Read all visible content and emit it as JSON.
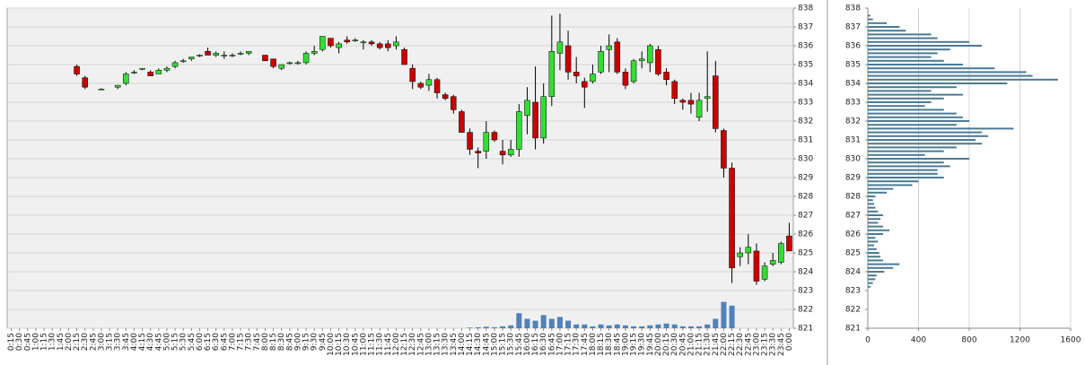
{
  "chart_data": [
    {
      "type": "candlestick",
      "categories": [
        "0:15",
        "0:30",
        "0:45",
        "1:00",
        "1:15",
        "1:30",
        "1:45",
        "2:00",
        "2:15",
        "2:30",
        "2:45",
        "3:00",
        "3:15",
        "3:30",
        "3:45",
        "4:00",
        "4:15",
        "4:30",
        "4:45",
        "5:00",
        "5:15",
        "5:30",
        "5:45",
        "6:00",
        "6:15",
        "6:30",
        "6:45",
        "7:00",
        "7:15",
        "7:30",
        "7:45",
        "8:00",
        "8:15",
        "8:30",
        "8:45",
        "9:00",
        "9:15",
        "9:30",
        "9:45",
        "10:00",
        "10:15",
        "10:30",
        "10:45",
        "11:00",
        "11:15",
        "11:30",
        "11:45",
        "12:00",
        "12:15",
        "12:30",
        "12:45",
        "13:00",
        "13:15",
        "13:30",
        "13:45",
        "14:00",
        "14:15",
        "14:30",
        "14:45",
        "15:00",
        "15:15",
        "15:30",
        "15:45",
        "16:00",
        "16:15",
        "16:30",
        "16:45",
        "17:00",
        "17:15",
        "17:30",
        "17:45",
        "18:00",
        "18:15",
        "18:30",
        "18:45",
        "19:00",
        "19:15",
        "19:30",
        "19:45",
        "20:00",
        "20:15",
        "20:30",
        "20:45",
        "21:00",
        "21:15",
        "21:30",
        "21:45",
        "22:00",
        "22:15",
        "22:30",
        "22:45",
        "23:00",
        "23:15",
        "23:30",
        "23:45",
        "0:00"
      ],
      "ohlc": [
        null,
        null,
        null,
        null,
        null,
        null,
        null,
        null,
        [
          834.9,
          835.0,
          834.4,
          834.5
        ],
        [
          834.3,
          834.4,
          833.7,
          833.8
        ],
        null,
        [
          833.7,
          833.75,
          833.65,
          833.7
        ],
        null,
        [
          833.8,
          833.9,
          833.7,
          833.9
        ],
        [
          834.0,
          834.6,
          833.9,
          834.5
        ],
        [
          834.6,
          834.7,
          834.5,
          834.6
        ],
        [
          834.8,
          834.8,
          834.7,
          834.8
        ],
        [
          834.6,
          834.7,
          834.4,
          834.4
        ],
        [
          834.5,
          834.8,
          834.5,
          834.7
        ],
        [
          834.7,
          834.9,
          834.6,
          834.8
        ],
        [
          834.9,
          835.2,
          834.8,
          835.1
        ],
        [
          835.2,
          835.3,
          835.1,
          835.2
        ],
        [
          835.3,
          835.4,
          835.2,
          835.4
        ],
        [
          835.5,
          835.55,
          835.4,
          835.5
        ],
        [
          835.7,
          835.9,
          835.5,
          835.5
        ],
        [
          835.5,
          835.7,
          835.4,
          835.6
        ],
        [
          835.5,
          835.7,
          835.3,
          835.5
        ],
        [
          835.5,
          835.6,
          835.4,
          835.5
        ],
        [
          835.6,
          835.7,
          835.5,
          835.6
        ],
        [
          835.6,
          835.7,
          835.5,
          835.7
        ],
        null,
        [
          835.5,
          835.5,
          835.2,
          835.2
        ],
        [
          835.3,
          835.3,
          834.8,
          834.9
        ],
        [
          834.8,
          835.0,
          834.7,
          835.0
        ],
        [
          835.1,
          835.15,
          835.0,
          835.1
        ],
        [
          835.1,
          835.2,
          835.0,
          835.1
        ],
        [
          835.1,
          835.7,
          835.0,
          835.6
        ],
        [
          835.6,
          836.0,
          835.5,
          835.7
        ],
        [
          835.8,
          836.5,
          835.7,
          836.5
        ],
        [
          836.4,
          836.4,
          835.9,
          836.0
        ],
        [
          835.9,
          836.2,
          835.6,
          836.1
        ],
        [
          836.3,
          836.5,
          836.1,
          836.2
        ],
        [
          836.3,
          836.4,
          836.2,
          836.3
        ],
        [
          836.2,
          836.3,
          835.8,
          836.2
        ],
        [
          836.2,
          836.3,
          836.0,
          836.1
        ],
        [
          836.1,
          836.2,
          835.8,
          835.9
        ],
        [
          836.1,
          836.3,
          835.7,
          835.9
        ],
        [
          836.0,
          836.5,
          835.8,
          836.2
        ],
        [
          835.8,
          835.9,
          835.0,
          835.0
        ],
        [
          834.8,
          835.0,
          833.7,
          834.1
        ],
        [
          834.0,
          834.1,
          833.7,
          833.8
        ],
        [
          833.9,
          834.5,
          833.6,
          834.2
        ],
        [
          834.2,
          834.3,
          833.2,
          833.5
        ],
        [
          833.4,
          833.5,
          833.1,
          833.2
        ],
        [
          833.3,
          833.4,
          832.4,
          832.6
        ],
        [
          832.5,
          832.6,
          831.4,
          831.4
        ],
        [
          831.4,
          831.6,
          830.2,
          830.5
        ],
        [
          830.4,
          830.6,
          829.5,
          830.3
        ],
        [
          830.4,
          832.0,
          830.0,
          831.4
        ],
        [
          831.4,
          831.5,
          830.9,
          831.0
        ],
        [
          830.4,
          831.0,
          829.7,
          830.2
        ],
        [
          830.2,
          831.0,
          830.1,
          830.5
        ],
        [
          830.5,
          832.9,
          830.1,
          832.5
        ],
        [
          832.3,
          833.8,
          831.3,
          833.1
        ],
        [
          833.0,
          834.9,
          830.5,
          831.1
        ],
        [
          831.1,
          834.0,
          830.8,
          833.3
        ],
        [
          833.3,
          837.6,
          832.8,
          835.7
        ],
        [
          835.6,
          837.7,
          834.7,
          836.2
        ],
        [
          836.0,
          836.8,
          834.2,
          834.6
        ],
        [
          834.6,
          835.4,
          834.0,
          834.4
        ],
        [
          834.1,
          834.3,
          832.7,
          833.8
        ],
        [
          834.1,
          835.0,
          834.0,
          834.5
        ],
        [
          834.6,
          836.0,
          834.5,
          835.7
        ],
        [
          835.8,
          836.6,
          834.6,
          836.0
        ],
        [
          836.2,
          836.4,
          834.5,
          834.6
        ],
        [
          834.6,
          834.8,
          833.7,
          833.9
        ],
        [
          834.1,
          835.3,
          834.0,
          835.2
        ],
        [
          835.2,
          835.7,
          834.8,
          835.3
        ],
        [
          835.1,
          836.1,
          834.6,
          836.0
        ],
        [
          835.8,
          836.0,
          834.4,
          834.5
        ],
        [
          834.6,
          834.8,
          833.9,
          834.2
        ],
        [
          834.1,
          834.2,
          832.9,
          833.2
        ],
        [
          833.1,
          833.2,
          832.6,
          833.0
        ],
        [
          833.1,
          833.5,
          832.4,
          832.9
        ],
        [
          832.2,
          833.5,
          832.0,
          833.1
        ],
        [
          833.2,
          835.7,
          832.5,
          833.3
        ],
        [
          834.4,
          835.2,
          831.4,
          831.6
        ],
        [
          831.5,
          831.6,
          829.0,
          829.5
        ],
        [
          829.5,
          829.8,
          823.4,
          824.2
        ],
        [
          824.8,
          825.3,
          824.3,
          825.0
        ],
        [
          825.0,
          826.0,
          824.4,
          825.3
        ],
        [
          825.1,
          825.5,
          823.3,
          823.5
        ],
        [
          823.6,
          824.5,
          823.5,
          824.3
        ],
        [
          824.4,
          825.0,
          824.3,
          824.6
        ],
        [
          824.5,
          825.6,
          824.4,
          825.5
        ],
        [
          825.9,
          826.6,
          825.1,
          825.1
        ]
      ],
      "volume": [
        null,
        null,
        null,
        null,
        null,
        null,
        null,
        null,
        null,
        null,
        null,
        null,
        null,
        null,
        null,
        null,
        null,
        null,
        null,
        null,
        null,
        null,
        null,
        null,
        null,
        null,
        null,
        null,
        null,
        null,
        null,
        null,
        null,
        null,
        null,
        null,
        null,
        null,
        null,
        null,
        null,
        null,
        null,
        null,
        null,
        null,
        null,
        null,
        null,
        null,
        null,
        null,
        null,
        null,
        null,
        null,
        821.03,
        821.05,
        821.08,
        821.05,
        821.1,
        821.15,
        821.8,
        821.5,
        821.4,
        821.7,
        821.5,
        821.6,
        821.4,
        821.2,
        821.2,
        821.1,
        821.2,
        821.15,
        821.2,
        821.15,
        821.1,
        821.1,
        821.15,
        821.2,
        821.25,
        821.2,
        821.1,
        821.1,
        821.1,
        821.2,
        821.5,
        822.4,
        822.2,
        null,
        null,
        null,
        null,
        null,
        null,
        null
      ],
      "up_color": "#33dd33",
      "down_color": "#cc0000",
      "volume_color": "#4f81bd",
      "ylim": [
        821,
        838
      ],
      "yticks": [
        821,
        822,
        823,
        824,
        825,
        826,
        827,
        828,
        829,
        830,
        831,
        832,
        833,
        834,
        835,
        836,
        837,
        838
      ],
      "grid": true
    },
    {
      "type": "bar",
      "orientation": "horizontal",
      "y": [
        823.2,
        823.4,
        823.6,
        823.8,
        824.0,
        824.2,
        824.4,
        824.6,
        824.8,
        825.0,
        825.2,
        825.4,
        825.6,
        825.8,
        826.0,
        826.2,
        826.4,
        826.6,
        826.8,
        827.0,
        827.2,
        827.4,
        827.6,
        827.8,
        828.0,
        828.2,
        828.4,
        828.6,
        828.8,
        829.0,
        829.2,
        829.4,
        829.6,
        829.8,
        830.0,
        830.2,
        830.4,
        830.6,
        830.8,
        831.0,
        831.2,
        831.4,
        831.6,
        831.8,
        832.0,
        832.2,
        832.4,
        832.6,
        832.8,
        833.0,
        833.2,
        833.4,
        833.6,
        833.8,
        834.0,
        834.2,
        834.4,
        834.6,
        834.8,
        835.0,
        835.2,
        835.4,
        835.6,
        835.8,
        836.0,
        836.2,
        836.4,
        836.6,
        836.8,
        837.0,
        837.2,
        837.4,
        837.6
      ],
      "values": [
        20,
        40,
        60,
        70,
        130,
        200,
        250,
        120,
        100,
        90,
        70,
        50,
        80,
        60,
        120,
        170,
        120,
        80,
        100,
        120,
        80,
        60,
        50,
        40,
        60,
        150,
        200,
        350,
        400,
        600,
        550,
        550,
        650,
        600,
        800,
        450,
        600,
        700,
        900,
        850,
        950,
        900,
        1150,
        700,
        800,
        750,
        700,
        600,
        450,
        500,
        600,
        750,
        500,
        700,
        1100,
        1500,
        1300,
        1250,
        1000,
        750,
        600,
        500,
        550,
        650,
        900,
        800,
        550,
        500,
        300,
        250,
        150,
        40,
        20
      ],
      "color": "#4a7a94",
      "xlim": [
        0,
        1600
      ],
      "xticks": [
        0,
        400,
        800,
        1200,
        1600
      ],
      "ylim": [
        821,
        838
      ],
      "yticks": [
        821,
        822,
        823,
        824,
        825,
        826,
        827,
        828,
        829,
        830,
        831,
        832,
        833,
        834,
        835,
        836,
        837,
        838
      ],
      "grid": true
    }
  ]
}
